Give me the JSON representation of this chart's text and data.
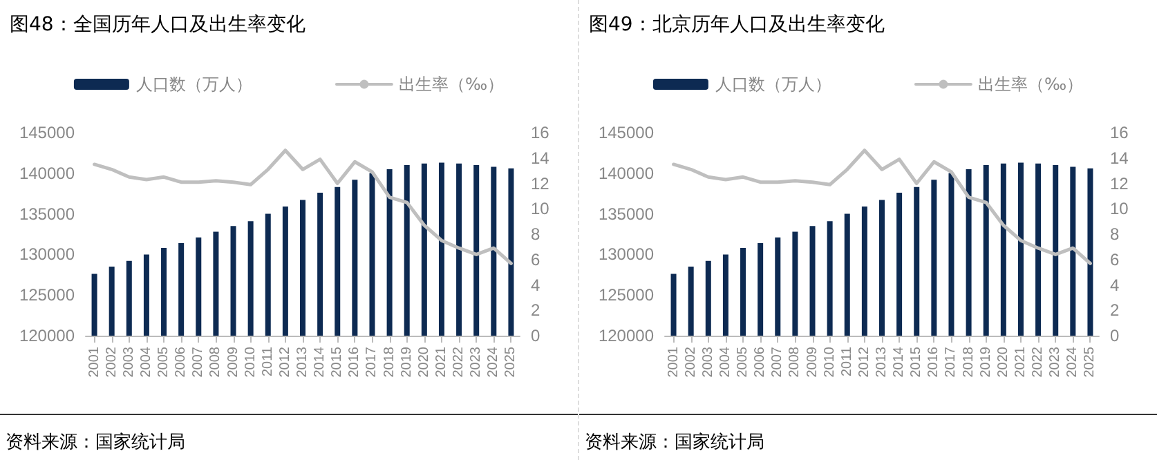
{
  "chart_data": [
    {
      "type": "bar",
      "title": "图48：全国历年人口及出生率变化",
      "categories": [
        "2001",
        "2002",
        "2003",
        "2004",
        "2005",
        "2006",
        "2007",
        "2008",
        "2009",
        "2010",
        "2011",
        "2012",
        "2013",
        "2014",
        "2015",
        "2016",
        "2017",
        "2018",
        "2019",
        "2020",
        "2021",
        "2022",
        "2023",
        "2024",
        "2025"
      ],
      "series": [
        {
          "name": "人口数（万人）",
          "color": "#0d2a52",
          "values": [
            127600,
            128500,
            129200,
            130000,
            130800,
            131400,
            132100,
            132800,
            133500,
            134100,
            135000,
            135900,
            136700,
            137600,
            138300,
            139200,
            140000,
            140500,
            141000,
            141200,
            141300,
            141200,
            141000,
            140800,
            140600
          ]
        },
        {
          "name": "出生率（‰）",
          "type": "line",
          "axis": "y2",
          "color": "#bfbfbf",
          "values": [
            13.5,
            13.1,
            12.5,
            12.3,
            12.5,
            12.1,
            12.1,
            12.2,
            12.1,
            11.9,
            13.1,
            14.6,
            13.1,
            13.9,
            12.0,
            13.7,
            12.9,
            10.9,
            10.5,
            8.7,
            7.5,
            6.9,
            6.4,
            6.9,
            5.7
          ]
        }
      ],
      "ylim": [
        120000,
        145000
      ],
      "yticks": [
        120000,
        125000,
        130000,
        135000,
        140000,
        145000
      ],
      "y2lim": [
        0,
        16
      ],
      "y2ticks": [
        0,
        2,
        4,
        6,
        8,
        10,
        12,
        14,
        16
      ],
      "legend": "top",
      "grid": false,
      "marker": "none",
      "annotations": [
        "资料来源：国家统计局"
      ]
    },
    {
      "type": "bar",
      "title": "图49：北京历年人口及出生率变化",
      "categories": [
        "2001",
        "2002",
        "2003",
        "2004",
        "2005",
        "2006",
        "2007",
        "2008",
        "2009",
        "2010",
        "2011",
        "2012",
        "2013",
        "2014",
        "2015",
        "2016",
        "2017",
        "2018",
        "2019",
        "2020",
        "2021",
        "2022",
        "2023",
        "2024",
        "2025"
      ],
      "series": [
        {
          "name": "人口数（万人）",
          "color": "#0d2a52",
          "values": [
            127600,
            128500,
            129200,
            130000,
            130800,
            131400,
            132100,
            132800,
            133500,
            134100,
            135000,
            135900,
            136700,
            137600,
            138300,
            139200,
            140000,
            140500,
            141000,
            141200,
            141300,
            141200,
            141000,
            140800,
            140600
          ]
        },
        {
          "name": "出生率（‰）",
          "type": "line",
          "axis": "y2",
          "color": "#bfbfbf",
          "values": [
            13.5,
            13.1,
            12.5,
            12.3,
            12.5,
            12.1,
            12.1,
            12.2,
            12.1,
            11.9,
            13.1,
            14.6,
            13.1,
            13.9,
            12.0,
            13.7,
            12.9,
            10.9,
            10.5,
            8.7,
            7.5,
            6.9,
            6.4,
            6.9,
            5.7
          ]
        }
      ],
      "ylim": [
        120000,
        145000
      ],
      "yticks": [
        120000,
        125000,
        130000,
        135000,
        140000,
        145000
      ],
      "y2lim": [
        0,
        16
      ],
      "y2ticks": [
        0,
        2,
        4,
        6,
        8,
        10,
        12,
        14,
        16
      ],
      "legend": "top",
      "grid": false,
      "marker": "none",
      "annotations": [
        "资料来源：国家统计局"
      ]
    }
  ]
}
